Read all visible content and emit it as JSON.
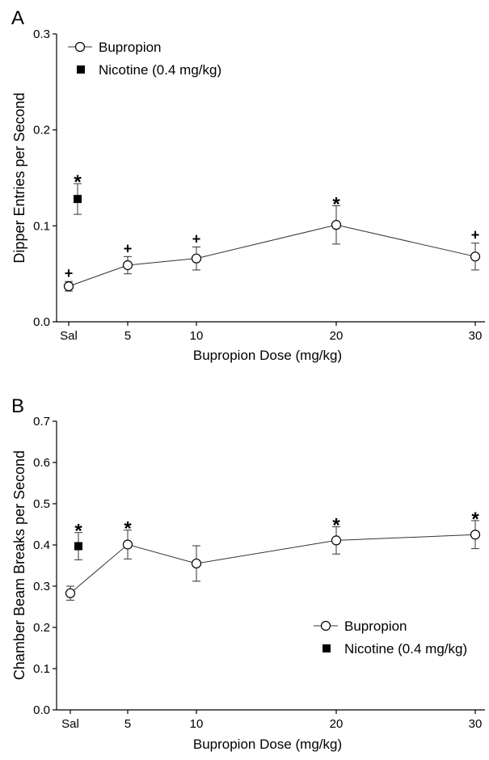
{
  "chart_data": [
    {
      "type": "line",
      "panel_label": "A",
      "xlabel": "Bupropion Dose (mg/kg)",
      "ylabel": "Dipper Entries per Second",
      "ylim": [
        0,
        0.3
      ],
      "yticks": [
        "0.0",
        "0.1",
        "0.2",
        "0.3"
      ],
      "xticks": [
        {
          "label": "Sal",
          "value": 0
        },
        {
          "label": "5",
          "value": 5
        },
        {
          "label": "10",
          "value": 10
        },
        {
          "label": "20",
          "value": 20
        },
        {
          "label": "30",
          "value": 30
        }
      ],
      "legend": {
        "placement": "top-left",
        "entries": [
          "Bupropion",
          "Nicotine (0.4 mg/kg)"
        ]
      },
      "series": [
        {
          "name": "Bupropion",
          "marker": "open-circle",
          "points": [
            {
              "x": 0,
              "y": 0.037,
              "err": 0.005,
              "annotation": "+"
            },
            {
              "x": 5,
              "y": 0.059,
              "err": 0.009,
              "annotation": "+"
            },
            {
              "x": 10,
              "y": 0.066,
              "err": 0.012,
              "annotation": "+"
            },
            {
              "x": 20,
              "y": 0.101,
              "err": 0.02,
              "annotation": "*"
            },
            {
              "x": 30,
              "y": 0.068,
              "err": 0.014,
              "annotation": "+"
            }
          ]
        },
        {
          "name": "Nicotine (0.4 mg/kg)",
          "marker": "filled-square",
          "points": [
            {
              "x": 1,
              "y": 0.128,
              "err": 0.016,
              "annotation": "*"
            }
          ]
        }
      ]
    },
    {
      "type": "line",
      "panel_label": "B",
      "xlabel": "Bupropion Dose (mg/kg)",
      "ylabel": "Chamber Beam Breaks per Second",
      "ylim": [
        0,
        0.7
      ],
      "yticks": [
        "0.0",
        "0.1",
        "0.2",
        "0.3",
        "0.4",
        "0.5",
        "0.6",
        "0.7"
      ],
      "xticks": [
        {
          "label": "Sal",
          "value": 0
        },
        {
          "label": "5",
          "value": 5
        },
        {
          "label": "10",
          "value": 10
        },
        {
          "label": "20",
          "value": 20
        },
        {
          "label": "30",
          "value": 30
        }
      ],
      "legend": {
        "placement": "bottom-right",
        "entries": [
          "Bupropion",
          "Nicotine (0.4 mg/kg)"
        ]
      },
      "series": [
        {
          "name": "Bupropion",
          "marker": "open-circle",
          "points": [
            {
              "x": 0,
              "y": 0.283,
              "err": 0.017,
              "annotation": ""
            },
            {
              "x": 5,
              "y": 0.401,
              "err": 0.035,
              "annotation": "*"
            },
            {
              "x": 10,
              "y": 0.355,
              "err": 0.043,
              "annotation": ""
            },
            {
              "x": 20,
              "y": 0.411,
              "err": 0.033,
              "annotation": "*"
            },
            {
              "x": 30,
              "y": 0.425,
              "err": 0.034,
              "annotation": "*"
            }
          ]
        },
        {
          "name": "Nicotine (0.4 mg/kg)",
          "marker": "filled-square",
          "points": [
            {
              "x": 1,
              "y": 0.397,
              "err": 0.033,
              "annotation": "*"
            }
          ]
        }
      ]
    }
  ]
}
